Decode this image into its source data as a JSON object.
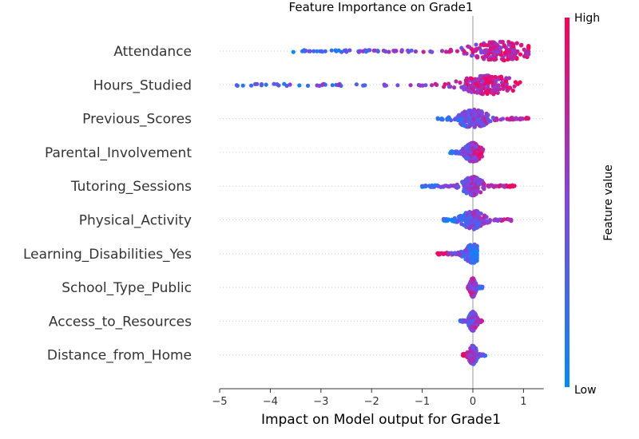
{
  "chart_data": {
    "type": "scatter",
    "subtype": "shap-beeswarm",
    "title": "Feature Importance on Grade1",
    "xlabel": "Impact on Model output for Grade1",
    "xlim": [
      -5.0,
      1.4
    ],
    "xticks": [
      {
        "value": -5,
        "label": "−5"
      },
      {
        "value": -4,
        "label": "−4"
      },
      {
        "value": -3,
        "label": "−3"
      },
      {
        "value": -2,
        "label": "−2"
      },
      {
        "value": -1,
        "label": "−1"
      },
      {
        "value": 0,
        "label": "0"
      },
      {
        "value": 1,
        "label": "1"
      }
    ],
    "colorbar": {
      "label": "Feature value",
      "high": "High",
      "low": "Low",
      "low_color": "#008bfb",
      "high_color": "#ff0052"
    },
    "features": [
      {
        "name": "Attendance",
        "min": -3.6,
        "max": 1.1,
        "center": 0.55,
        "spread": 1.0,
        "low_side": "left"
      },
      {
        "name": "Hours_Studied",
        "min": -4.8,
        "max": 0.95,
        "center": 0.3,
        "spread": 0.9,
        "low_side": "left"
      },
      {
        "name": "Previous_Scores",
        "min": -0.7,
        "max": 1.1,
        "center": 0.0,
        "spread": 0.45,
        "low_side": "left"
      },
      {
        "name": "Parental_Involvement",
        "min": -0.45,
        "max": 0.2,
        "center": 0.0,
        "spread": 0.25,
        "low_side": "left"
      },
      {
        "name": "Tutoring_Sessions",
        "min": -1.05,
        "max": 0.85,
        "center": 0.0,
        "spread": 0.3,
        "low_side": "left"
      },
      {
        "name": "Physical_Activity",
        "min": -0.6,
        "max": 0.8,
        "center": 0.0,
        "spread": 0.35,
        "low_side": "left"
      },
      {
        "name": "Learning_Disabilities_Yes",
        "min": -0.7,
        "max": 0.08,
        "center": 0.0,
        "spread": 0.25,
        "low_side": "right"
      },
      {
        "name": "School_Type_Public",
        "min": -0.1,
        "max": 0.2,
        "center": 0.0,
        "spread": 0.08,
        "low_side": "right"
      },
      {
        "name": "Access_to_Resources",
        "min": -0.25,
        "max": 0.2,
        "center": 0.0,
        "spread": 0.12,
        "low_side": "left"
      },
      {
        "name": "Distance_from_Home",
        "min": -0.2,
        "max": 0.25,
        "center": 0.0,
        "spread": 0.12,
        "low_side": "right"
      }
    ]
  }
}
